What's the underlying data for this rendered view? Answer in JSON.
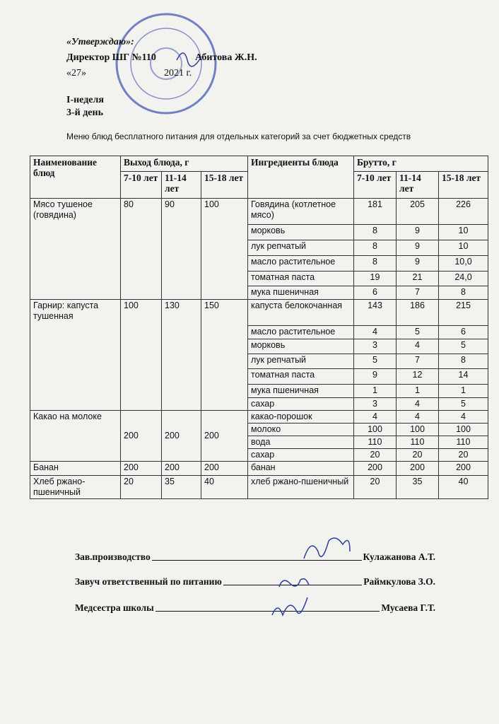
{
  "header": {
    "approval": "«Утверждаю»:",
    "director_role": "Директор  ШГ №110",
    "director_name": "Абитова Ж.Н.",
    "date_day": "«27»",
    "date_year": "2021 г.",
    "week": "I-неделя",
    "day": "3-й день",
    "title": "Меню блюд бесплатного питания для отдельных категорий за счет бюджетных средств"
  },
  "table": {
    "headers": {
      "dish": "Наименование блюд",
      "yield": "Выход блюда, г",
      "ingredients": "Ингредиенты блюда",
      "brutto": "Брутто, г",
      "ages": [
        "7-10 лет",
        "11-14 лет",
        "15-18 лет"
      ]
    },
    "rows": [
      {
        "dish": "Мясо тушеное (говядина)",
        "yields": [
          "80",
          "90",
          "100"
        ],
        "ingredients": [
          {
            "name": "Говядина (котлетное мясо)",
            "brutto": [
              "181",
              "205",
              "226"
            ]
          },
          {
            "name": "морковь",
            "brutto": [
              "8",
              "9",
              "10"
            ]
          },
          {
            "name": "лук репчатый",
            "brutto": [
              "8",
              "9",
              "10"
            ]
          },
          {
            "name": "масло растительное",
            "brutto": [
              "8",
              "9",
              "10,0"
            ]
          },
          {
            "name": "томатная паста",
            "brutto": [
              "19",
              "21",
              "24,0"
            ]
          },
          {
            "name": "мука пшеничная",
            "brutto": [
              "6",
              "7",
              "8"
            ]
          }
        ]
      },
      {
        "dish": "Гарнир: капуста тушенная",
        "yields": [
          "100",
          "130",
          "150"
        ],
        "ingredients": [
          {
            "name": "капуста белокочанная",
            "brutto": [
              "143",
              "186",
              "215"
            ]
          },
          {
            "name": "масло растительное",
            "brutto": [
              "4",
              "5",
              "6"
            ]
          },
          {
            "name": "морковь",
            "brutto": [
              "3",
              "4",
              "5"
            ]
          },
          {
            "name": "лук репчатый",
            "brutto": [
              "5",
              "7",
              "8"
            ]
          },
          {
            "name": "томатная паста",
            "brutto": [
              "9",
              "12",
              "14"
            ]
          },
          {
            "name": "мука пшеничная",
            "brutto": [
              "1",
              "1",
              "1"
            ]
          },
          {
            "name": "сахар",
            "brutto": [
              "3",
              "4",
              "5"
            ]
          }
        ]
      },
      {
        "dish": "Какао на молоке",
        "yields": [
          "200",
          "200",
          "200"
        ],
        "ingredients": [
          {
            "name": "какао-порошок",
            "brutto": [
              "4",
              "4",
              "4"
            ]
          },
          {
            "name": "молоко",
            "brutto": [
              "100",
              "100",
              "100"
            ]
          },
          {
            "name": "вода",
            "brutto": [
              "110",
              "110",
              "110"
            ]
          },
          {
            "name": "сахар",
            "brutto": [
              "20",
              "20",
              "20"
            ]
          }
        ]
      },
      {
        "dish": "Банан",
        "yields": [
          "200",
          "200",
          "200"
        ],
        "ingredients": [
          {
            "name": "банан",
            "brutto": [
              "200",
              "200",
              "200"
            ]
          }
        ]
      },
      {
        "dish": "Хлеб ржано-пшеничный",
        "yields": [
          "20",
          "35",
          "40"
        ],
        "ingredients": [
          {
            "name": "хлеб ржано-пшеничный",
            "brutto": [
              "20",
              "35",
              "40"
            ]
          }
        ]
      }
    ]
  },
  "signatures": [
    {
      "role": "Зав.производство",
      "name": "Кулажанова А.Т."
    },
    {
      "role": "Завуч  ответственный  по  питанию",
      "name": "Раймкулова З.О."
    },
    {
      "role": "Медсестра  школы",
      "name": "Мусаева Г.Т."
    }
  ]
}
